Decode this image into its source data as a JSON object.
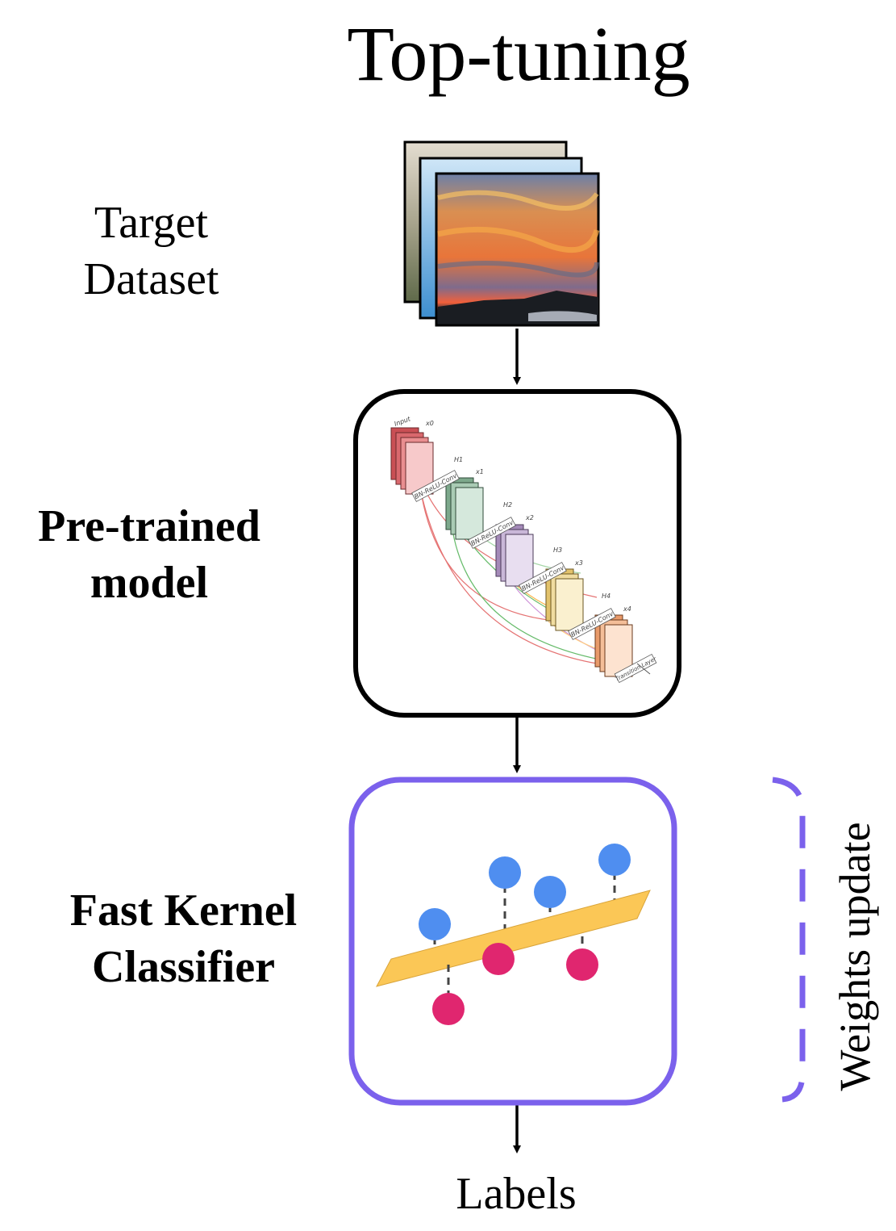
{
  "title": "Top-tuning",
  "stages": {
    "dataset": {
      "line1": "Target",
      "line2": "Dataset"
    },
    "pretrained": {
      "line1": "Pre-trained",
      "line2": "model"
    },
    "classifier": {
      "line1": "Fast Kernel",
      "line2": "Classifier"
    }
  },
  "output_label": "Labels",
  "side_label": "Weights update",
  "network_labels": {
    "input": "Input",
    "x0": "x0",
    "x1": "x1",
    "x2": "x2",
    "x3": "x3",
    "x4": "x4",
    "h1": "H1",
    "h2": "H2",
    "h3": "H3",
    "h4": "H4",
    "block": "BN-ReLU-Conv",
    "transition": "Transition Layer"
  },
  "colors": {
    "classifier_border": "#7b61ec",
    "hyperplane": "#fbc756",
    "point_blue": "#4f8ef0",
    "point_pink": "#e0266f"
  }
}
